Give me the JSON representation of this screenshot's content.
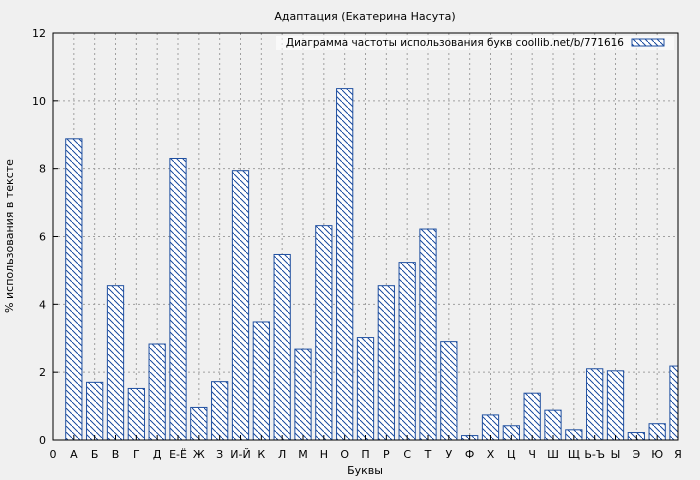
{
  "chart_data": {
    "type": "bar",
    "title": "Адаптация (Екатерина Насута)",
    "xlabel": "Буквы",
    "ylabel": "% использования в тексте",
    "legend": "Диаграмма частоты использования букв coollib.net/b/771616",
    "legend_position": "top-right",
    "grid": true,
    "ylim": [
      0,
      12
    ],
    "yticks": [
      "0",
      "2",
      "4",
      "6",
      "8",
      "10",
      "12"
    ],
    "categories": [
      "А",
      "Б",
      "В",
      "Г",
      "Д",
      "Е-Ё",
      "Ж",
      "З",
      "И-Й",
      "К",
      "Л",
      "М",
      "Н",
      "О",
      "П",
      "Р",
      "С",
      "Т",
      "У",
      "Ф",
      "Х",
      "Ц",
      "Ч",
      "Ш",
      "Щ",
      "Ь-Ъ",
      "Ы",
      "Э",
      "Ю",
      "Я"
    ],
    "x_start_label": "0",
    "values": [
      8.88,
      1.7,
      4.55,
      1.52,
      2.83,
      8.3,
      0.96,
      1.72,
      7.94,
      3.48,
      5.47,
      2.68,
      6.32,
      10.36,
      3.02,
      4.55,
      5.23,
      6.22,
      2.9,
      0.13,
      0.74,
      0.42,
      1.38,
      0.88,
      0.3,
      2.1,
      2.04,
      0.22,
      0.48,
      2.18
    ],
    "colors": {
      "bar_stroke": "#1f4fa0",
      "hatch": "#1f4fa0",
      "grid": "#a0a0a0",
      "background": "#f0f0f0"
    }
  }
}
